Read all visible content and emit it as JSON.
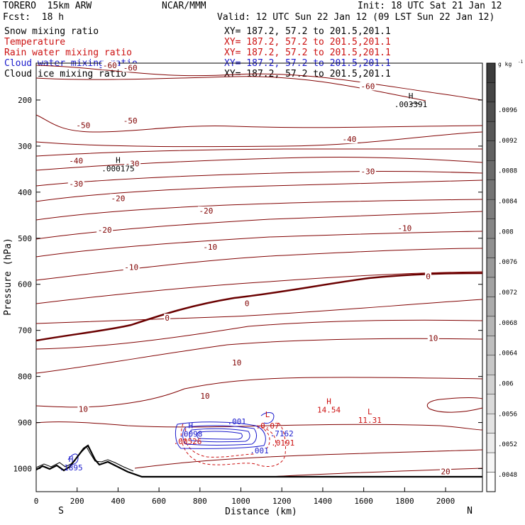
{
  "header": {
    "model": "TORERO  15km ARW",
    "center": "NCAR/MMM",
    "init": "Init: 18 UTC Sat 21 Jan 12",
    "fcst": "Fcst:  18 h",
    "valid": "Valid: 12 UTC Sun 22 Jan 12 (09 LST Sun 22 Jan 12)"
  },
  "fields": [
    {
      "name": "Snow mixing ratio",
      "xy": "XY= 187.2, 57.2 to 201.5,201.1",
      "color": "#000000"
    },
    {
      "name": "Temperature",
      "xy": "XY= 187.2, 57.2 to 201.5,201.1",
      "color": "#cc1111"
    },
    {
      "name": "Rain water mixing ratio",
      "xy": "XY= 187.2, 57.2 to 201.5,201.1",
      "color": "#cc1111"
    },
    {
      "name": "Cloud water mixing ratio",
      "xy": "XY= 187.2, 57.2 to 201.5,201.1",
      "color": "#1a1acc"
    },
    {
      "name": "Cloud ice mixing ratio",
      "xy": "XY= 187.2, 57.2 to 201.5,201.1",
      "color": "#000000"
    }
  ],
  "chart_data": {
    "type": "contour-cross-section",
    "xlabel": "Distance (km)",
    "ylabel": "Pressure (hPa)",
    "xlim": [
      0,
      2180
    ],
    "ylim": [
      1050,
      120
    ],
    "x_ticks": [
      0,
      200,
      400,
      600,
      800,
      1000,
      1200,
      1400,
      1600,
      1800,
      2000
    ],
    "y_ticks": [
      200,
      300,
      400,
      500,
      600,
      700,
      800,
      900,
      1000
    ],
    "x_end_labels": {
      "left": "S",
      "right": "N"
    },
    "colorbar": {
      "unit": "g kg",
      "unit_exp": "-1",
      "ticks": [
        ".0096",
        ".0092",
        ".0088",
        ".0084",
        ".008",
        ".0076",
        ".0072",
        ".0068",
        ".0064",
        ".006",
        ".0056",
        ".0052",
        ".0048"
      ]
    },
    "temperature_labels": [
      {
        "x": 360,
        "p": 125,
        "text": "-60"
      },
      {
        "x": 460,
        "p": 130,
        "text": "-60"
      },
      {
        "x": 1620,
        "p": 170,
        "text": "-60"
      },
      {
        "x": 230,
        "p": 255,
        "text": "-50"
      },
      {
        "x": 460,
        "p": 245,
        "text": "-50"
      },
      {
        "x": 1530,
        "p": 285,
        "text": "-40"
      },
      {
        "x": 195,
        "p": 332,
        "text": "-40"
      },
      {
        "x": 470,
        "p": 338,
        "text": "-30"
      },
      {
        "x": 1620,
        "p": 355,
        "text": "-30"
      },
      {
        "x": 195,
        "p": 382,
        "text": "-30"
      },
      {
        "x": 400,
        "p": 413,
        "text": "-20"
      },
      {
        "x": 830,
        "p": 440,
        "text": "-20"
      },
      {
        "x": 1800,
        "p": 478,
        "text": "-10"
      },
      {
        "x": 335,
        "p": 482,
        "text": "-20"
      },
      {
        "x": 850,
        "p": 519,
        "text": "-10"
      },
      {
        "x": 465,
        "p": 563,
        "text": "-10"
      },
      {
        "x": 1915,
        "p": 583,
        "text": "0"
      },
      {
        "x": 1030,
        "p": 641,
        "text": "0"
      },
      {
        "x": 640,
        "p": 673,
        "text": "0"
      },
      {
        "x": 1940,
        "p": 717,
        "text": "10"
      },
      {
        "x": 980,
        "p": 770,
        "text": "10"
      },
      {
        "x": 825,
        "p": 842,
        "text": "10"
      },
      {
        "x": 230,
        "p": 871,
        "text": "10"
      },
      {
        "x": 2000,
        "p": 1006,
        "text": "20"
      }
    ],
    "extrema": [
      {
        "kind": "H",
        "x": 1830,
        "p": 197,
        "value": ".003391",
        "color": "#000000"
      },
      {
        "kind": "H",
        "x": 400,
        "p": 336,
        "value": ".000175",
        "color": "#000000"
      },
      {
        "kind": "H",
        "x": 1430,
        "p": 860,
        "value": "14.54",
        "color": "#cc1111"
      },
      {
        "kind": "L",
        "x": 1630,
        "p": 882,
        "value": "11.31",
        "color": "#cc1111"
      },
      {
        "kind": "L",
        "x": 1130,
        "p": 888,
        "value": "",
        "color": "#cc1111"
      },
      {
        "kind": "H",
        "x": 755,
        "p": 912,
        "value": ".0098",
        "color": "#1a1acc"
      },
      {
        "kind": "",
        "x": 740,
        "p": 947,
        "value": ".00526",
        "color": "#cc1111"
      },
      {
        "kind": "",
        "x": 1205,
        "p": 950,
        "value": ".0191",
        "color": "#cc1111"
      },
      {
        "kind": "",
        "x": 1200,
        "p": 930,
        "value": ".7162",
        "color": "#1a1acc"
      },
      {
        "kind": "",
        "x": 1130,
        "p": 913,
        "value": ".0.07",
        "color": "#cc1111"
      },
      {
        "kind": "",
        "x": 1090,
        "p": 967,
        "value": ".001",
        "color": "#1a1acc"
      },
      {
        "kind": "",
        "x": 980,
        "p": 904,
        "value": ".001",
        "color": "#1a1acc"
      },
      {
        "kind": "H",
        "x": 170,
        "p": 985,
        "value": ".1895",
        "color": "#1a1acc"
      }
    ]
  }
}
